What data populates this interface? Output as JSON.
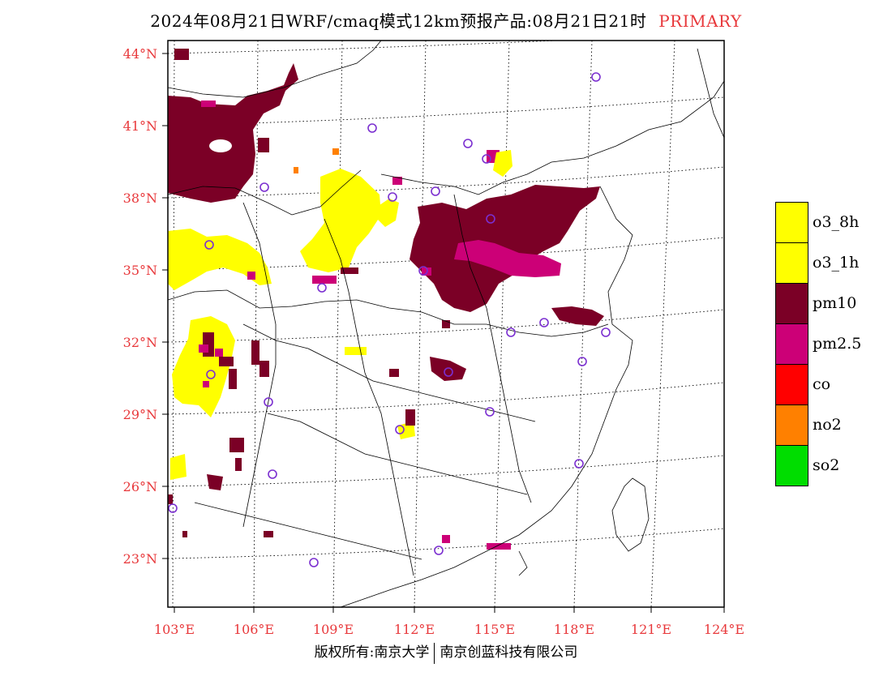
{
  "title": {
    "main": "2024年08月21日WRF/cmaq模式12km预报产品:08月21日21时",
    "tag": "PRIMARY"
  },
  "axes": {
    "lat_labels": [
      "44°N",
      "41°N",
      "38°N",
      "35°N",
      "32°N",
      "29°N",
      "26°N",
      "23°N"
    ],
    "lon_labels": [
      "103°E",
      "106°E",
      "109°E",
      "112°E",
      "115°E",
      "118°E",
      "121°E",
      "124°E"
    ],
    "label_color": "#e8383b"
  },
  "legend": [
    {
      "label": "o3_8h",
      "color": "#ffff00"
    },
    {
      "label": "o3_1h",
      "color": "#ffff00"
    },
    {
      "label": "pm10",
      "color": "#7b0026"
    },
    {
      "label": "pm2.5",
      "color": "#cc0077"
    },
    {
      "label": "co",
      "color": "#ff0000"
    },
    {
      "label": "no2",
      "color": "#ff8000"
    },
    {
      "label": "so2",
      "color": "#00dd00"
    }
  ],
  "footer": {
    "left": "版权所有:南京大学",
    "right": "南京创蓝科技有限公司"
  },
  "colors": {
    "pm10": "#7b0026",
    "pm25": "#cc0077",
    "o3": "#ffff00",
    "no2": "#ff8000",
    "station": "#7b2fd0"
  }
}
